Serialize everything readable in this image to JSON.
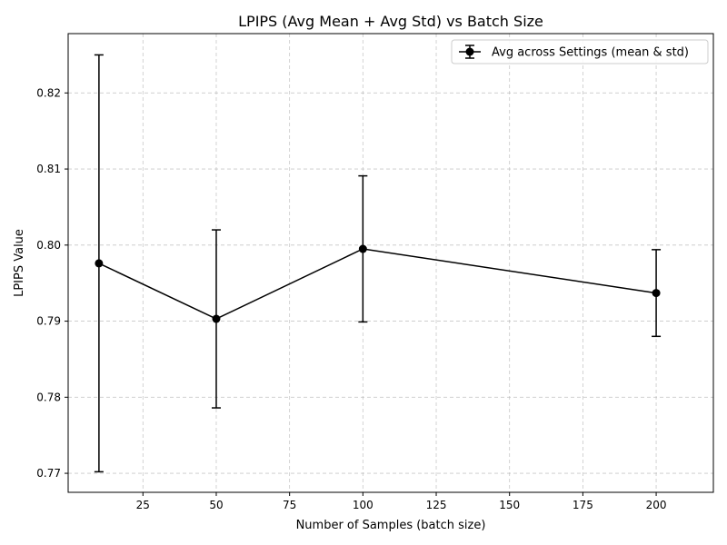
{
  "chart_data": {
    "type": "line",
    "title": "LPIPS (Avg Mean + Avg Std) vs Batch Size",
    "xlabel": "Number of Samples (batch size)",
    "ylabel": "LPIPS Value",
    "xlim": [
      -0.5,
      219.5
    ],
    "ylim": [
      0.7675,
      0.8278
    ],
    "x_ticks": [
      25,
      50,
      75,
      100,
      125,
      150,
      175,
      200
    ],
    "x_tick_labels": [
      "25",
      "50",
      "75",
      "100",
      "125",
      "150",
      "175",
      "200"
    ],
    "y_ticks": [
      0.77,
      0.78,
      0.79,
      0.8,
      0.81,
      0.82
    ],
    "y_tick_labels": [
      "0.77",
      "0.78",
      "0.79",
      "0.80",
      "0.81",
      "0.82"
    ],
    "grid": true,
    "legend_position": "top-right",
    "series": [
      {
        "name": "Avg across Settings (mean & std)",
        "color": "#000000",
        "marker": "circle",
        "x": [
          10,
          50,
          100,
          200
        ],
        "y": [
          0.7976,
          0.7903,
          0.7995,
          0.7937
        ],
        "yerr": [
          0.0274,
          0.0117,
          0.0096,
          0.0057
        ]
      }
    ]
  }
}
